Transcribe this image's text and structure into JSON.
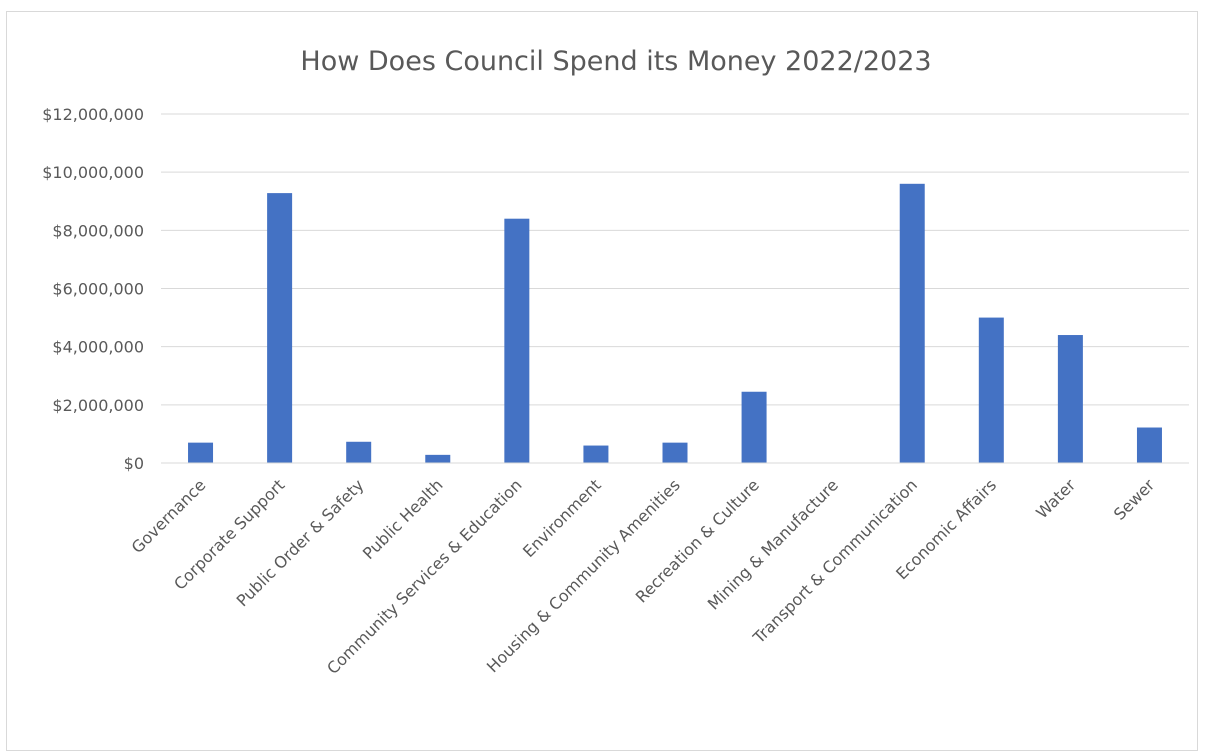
{
  "chart_data": {
    "type": "bar",
    "title": "How Does Council Spend its Money 2022/2023",
    "xlabel": "",
    "ylabel": "",
    "categories": [
      "Governance",
      "Corporate Support",
      "Public Order & Safety",
      "Public Health",
      "Community Services & Education",
      "Environment",
      "Housing & Community Amenities",
      "Recreation & Culture",
      "Mining & Manufacture",
      "Transport & Communication",
      "Economic Affairs",
      "Water",
      "Sewer"
    ],
    "values": [
      700000,
      9280000,
      730000,
      280000,
      8400000,
      600000,
      700000,
      2450000,
      0,
      9600000,
      5000000,
      4400000,
      1220000
    ],
    "ylim": [
      0,
      12000000
    ],
    "yticks": [
      0,
      2000000,
      4000000,
      6000000,
      8000000,
      10000000,
      12000000
    ],
    "ytick_labels": [
      "$0",
      "$2,000,000",
      "$4,000,000",
      "$6,000,000",
      "$8,000,000",
      "$10,000,000",
      "$12,000,000"
    ],
    "grid": true,
    "legend": "none",
    "bar_color": "#4472c4",
    "grid_color": "#d9d9d9",
    "text_color": "#595959"
  }
}
